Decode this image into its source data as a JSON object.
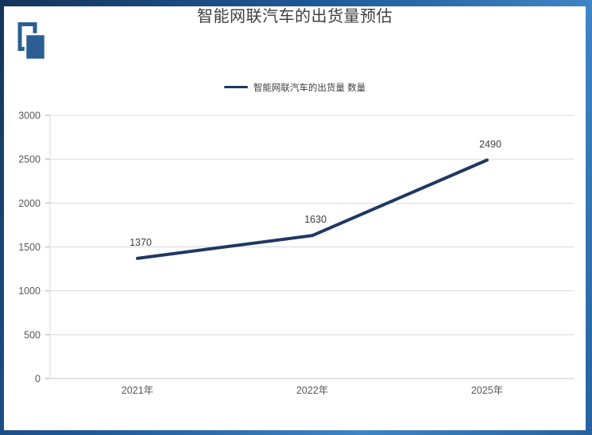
{
  "title": "智能网联汽车的出货量预估",
  "logo": {
    "icon": "overlapping-frames-logo"
  },
  "legend": {
    "label": "智能网联汽车的出货量 数量",
    "marker": "line"
  },
  "chart_data": {
    "type": "line",
    "title": "智能网联汽车的出货量预估",
    "categories": [
      "2021年",
      "2022年",
      "2025年"
    ],
    "series": [
      {
        "name": "智能网联汽车的出货量 数量",
        "values": [
          1370,
          1630,
          2490
        ],
        "color": "#1F3864"
      }
    ],
    "data_labels": [
      "1370",
      "1630",
      "2490"
    ],
    "xlabel": "",
    "ylabel": "",
    "ylim": [
      0,
      3000
    ],
    "yticks": [
      0,
      500,
      1000,
      1500,
      2000,
      2500,
      3000
    ],
    "grid": true,
    "legend_position": "top-center"
  },
  "colors": {
    "series_line": "#1F3864",
    "gridline": "#D9D9D9",
    "axis_line": "#C6C6C6",
    "tick_label": "#595959",
    "data_label": "#404040",
    "title_text": "#3F3F3F",
    "legend_text": "#404040",
    "logo_blue": "#2B5F93",
    "frame_dark": "#15355B",
    "frame_light": "#3E85C6"
  }
}
